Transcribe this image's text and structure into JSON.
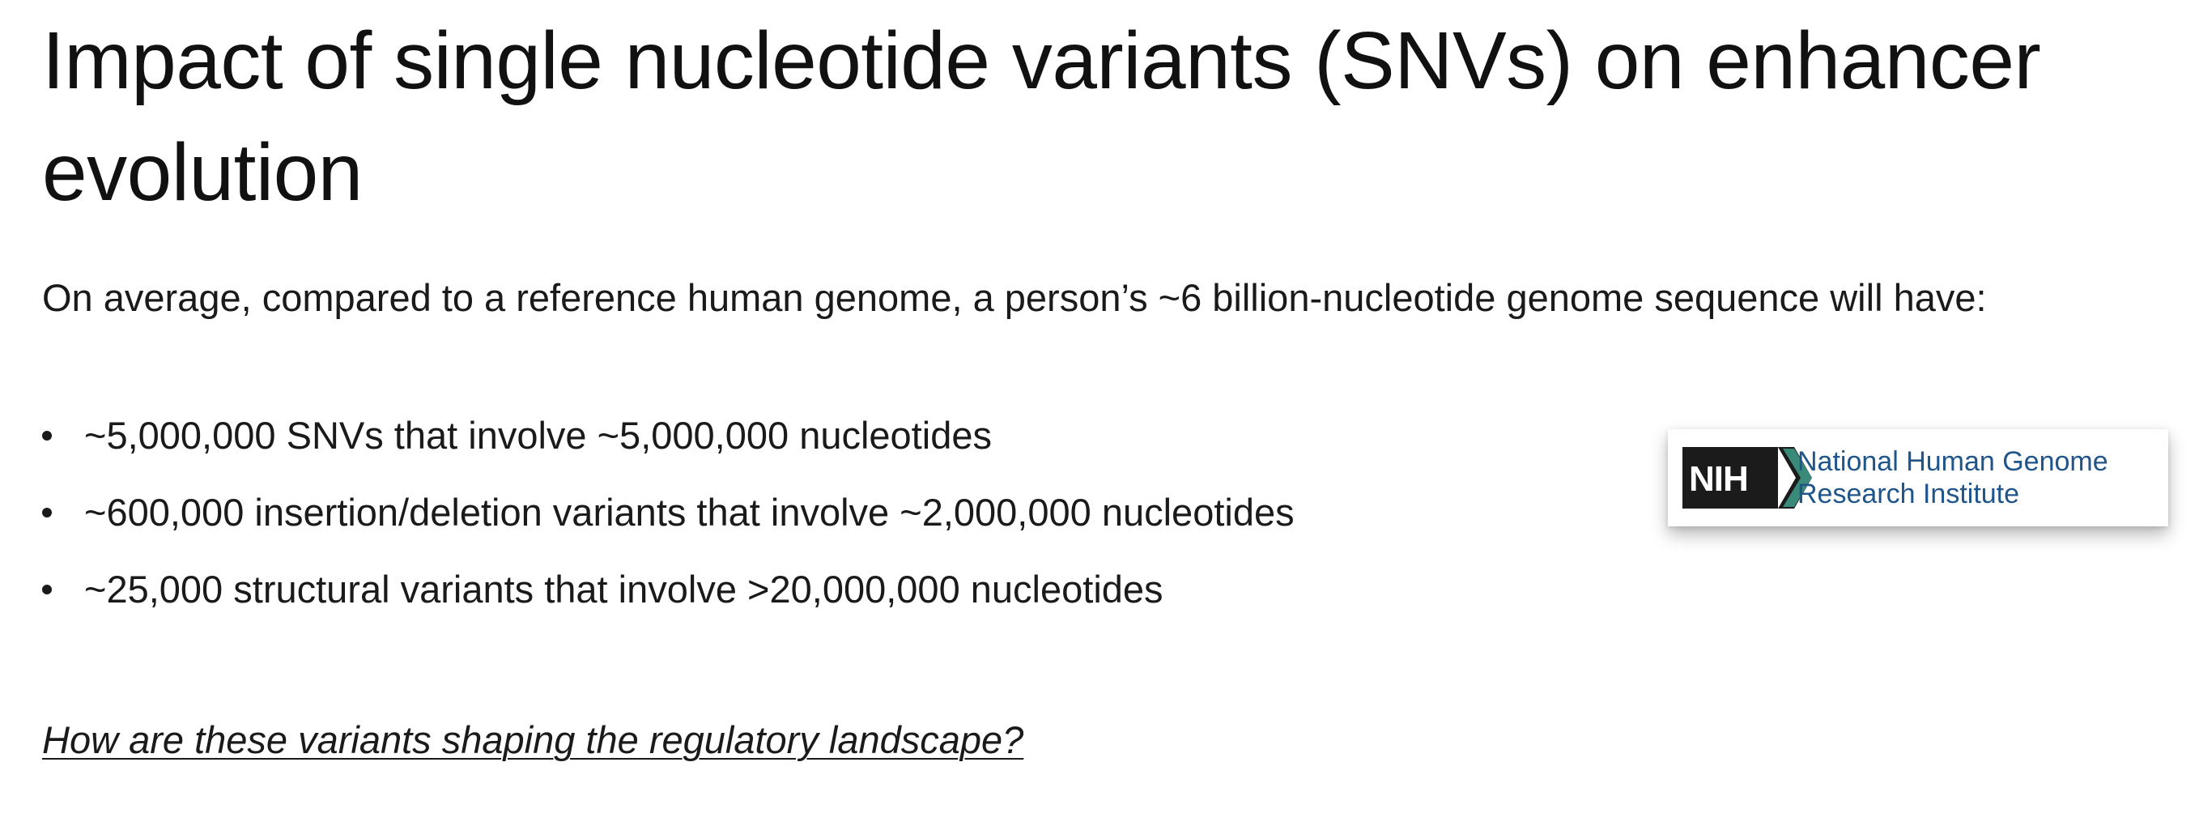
{
  "slide": {
    "title": "Impact of single nucleotide variants (SNVs) on enhancer evolution",
    "intro": "On average, compared to a reference human genome, a person’s ~6 billion-nucleotide genome sequence will have:",
    "bullets": [
      "~5,000,000 SNVs that involve ~5,000,000 nucleotides",
      "~600,000 insertion/deletion variants that involve ~2,000,000 nucleotides",
      "~25,000 structural variants that involve >20,000,000 nucleotides"
    ],
    "question": "How are these variants shaping the regulatory landscape?"
  },
  "logo": {
    "mark_text": "NIH",
    "name_line1": "National Human Genome",
    "name_line2": "Research Institute",
    "mark_color": "#1b1b1b",
    "chevron_color": "#3a8a7a",
    "name_color": "#20558a"
  }
}
